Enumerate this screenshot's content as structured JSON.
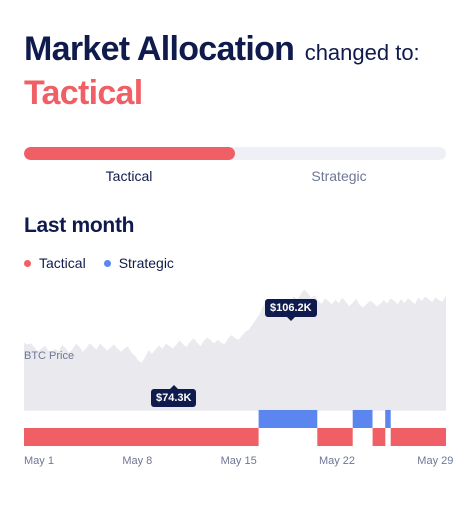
{
  "headline": {
    "title": "Market Allocation",
    "subtitle": "changed to:",
    "current_state": "Tactical"
  },
  "progress": {
    "fill_fraction": 0.5,
    "left_label": "Tactical",
    "right_label": "Strategic"
  },
  "section": {
    "title": "Last month"
  },
  "legend": [
    {
      "label": "Tactical",
      "color": "#f05f66"
    },
    {
      "label": "Strategic",
      "color": "#5b86f0"
    }
  ],
  "chart_labels": {
    "series": "BTC Price",
    "high_price": "$106.2K",
    "low_price": "$74.3K"
  },
  "chart_data": {
    "type": "area",
    "series": [
      {
        "name": "BTC Price",
        "color": "#e9e9ee",
        "values": [
          83,
          82.3,
          82.8,
          81,
          79.2,
          80.5,
          81.7,
          79.8,
          78.9,
          80.4,
          79.3,
          82.1,
          80.8,
          78.7,
          80.2,
          82.6,
          81.3,
          79.1,
          80.7,
          82.9,
          81.4,
          80.1,
          82.8,
          81.2,
          79.7,
          80.9,
          82.3,
          80.6,
          79.2,
          80.4,
          81.6,
          78.9,
          77.6,
          75.5,
          74.3,
          76.8,
          79.8,
          78.2,
          80.1,
          81.9,
          80.4,
          82.7,
          81.8,
          80.6,
          82.3,
          84.1,
          82.4,
          81.2,
          83.5,
          84.9,
          83.2,
          81.6,
          83.9,
          85.4,
          84.1,
          82.8,
          84.3,
          83.1,
          82.4,
          84.8,
          86.4,
          85.1,
          84.3,
          86.1,
          87.9,
          88.7,
          90.8,
          93.1,
          95.2,
          98.6,
          101.4,
          99.7,
          102.1,
          100.6,
          98.9,
          100.8,
          102.4,
          101.1,
          103.2,
          101.7,
          104.1,
          106.2,
          104.8,
          102.6,
          103.7,
          101.4,
          99.9,
          102.3,
          101.1,
          99.8,
          101.7,
          100.2,
          102.6,
          100.8,
          98.9,
          100.3,
          102.1,
          99.6,
          98.3,
          99.7,
          101.2,
          100.4,
          98.8,
          99.9,
          101.6,
          100.1,
          102.4,
          101.3,
          99.7,
          101.9,
          100.2,
          102.3,
          101.1,
          99.8,
          102.6,
          101.2,
          103.1,
          101.9,
          100.7,
          102.8,
          101.5,
          100.9,
          103.7
        ]
      }
    ],
    "allocation_periods": [
      {
        "state": "Tactical",
        "start": 0,
        "end": 0.556
      },
      {
        "state": "Strategic",
        "start": 0.556,
        "end": 0.695
      },
      {
        "state": "Tactical",
        "start": 0.695,
        "end": 0.779
      },
      {
        "state": "Strategic",
        "start": 0.779,
        "end": 0.826
      },
      {
        "state": "Tactical",
        "start": 0.826,
        "end": 0.856
      },
      {
        "state": "Strategic",
        "start": 0.856,
        "end": 0.869
      },
      {
        "state": "Tactical",
        "start": 0.869,
        "end": 1.0
      }
    ],
    "x_ticks": [
      "May 1",
      "May 8",
      "May 15",
      "May 22",
      "May 29"
    ],
    "ylim": [
      60,
      112
    ]
  }
}
